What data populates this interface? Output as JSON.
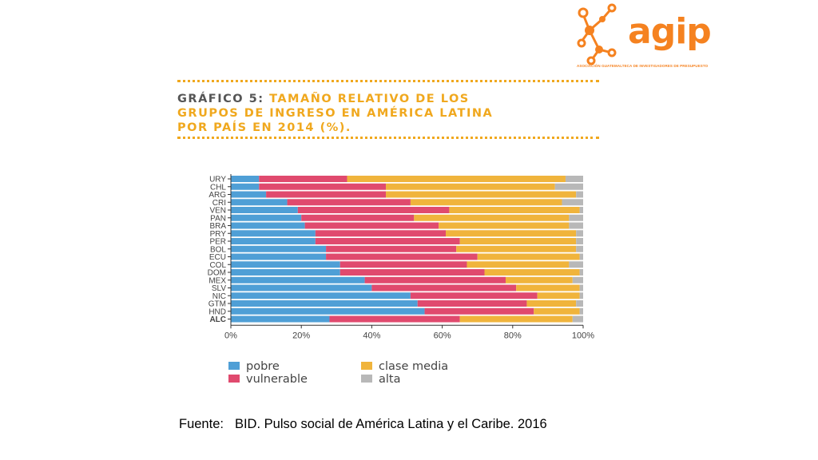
{
  "logo": {
    "name": "agip",
    "subtitle": "ASOCIACIÓN GUATEMALTECA DE INVESTIGADORES DE PRESUPUESTO",
    "icon": "molecule-network-icon",
    "color": "#f58220"
  },
  "title": {
    "lead": "GRÁFICO 5:",
    "rest_line1": "TAMAÑO RELATIVO DE LOS",
    "line2": "GRUPOS DE INGRESO EN AMÉRICA LATINA",
    "line3": "POR PAÍS EN 2014 (%)."
  },
  "source": {
    "label": "Fuente:",
    "text": "BID. Pulso social de América Latina y el Caribe. 2016"
  },
  "colors": {
    "pobre": "#4f9fd6",
    "vulnerable": "#e04a6e",
    "clase_media": "#f0b43c",
    "alta": "#b8b8b8",
    "title_accent": "#f0a81e",
    "title_lead": "#555555"
  },
  "chart_data": {
    "type": "bar",
    "orientation": "horizontal",
    "stacked": true,
    "categories": [
      "URY",
      "CHL",
      "ARG",
      "CRI",
      "VEN",
      "PAN",
      "BRA",
      "PRY",
      "PER",
      "BOL",
      "ECU",
      "COL",
      "DOM",
      "MEX",
      "SLV",
      "NIC",
      "GTM",
      "HND",
      "ALC"
    ],
    "series": [
      {
        "name": "pobre",
        "color": "#4f9fd6",
        "values": [
          8,
          8,
          10,
          16,
          19,
          20,
          21,
          24,
          24,
          27,
          27,
          31,
          31,
          38,
          40,
          51,
          53,
          55,
          28
        ]
      },
      {
        "name": "vulnerable",
        "color": "#e04a6e",
        "values": [
          25,
          36,
          34,
          35,
          43,
          32,
          38,
          37,
          41,
          37,
          43,
          36,
          41,
          40,
          41,
          36,
          31,
          31,
          37
        ]
      },
      {
        "name": "clase media",
        "color": "#f0b43c",
        "values": [
          62,
          48,
          54,
          43,
          37,
          44,
          37,
          37,
          33,
          34,
          29,
          29,
          27,
          19,
          18,
          12,
          14,
          13,
          32
        ]
      },
      {
        "name": "alta",
        "color": "#b8b8b8",
        "values": [
          5,
          8,
          2,
          6,
          1,
          4,
          4,
          2,
          2,
          2,
          1,
          4,
          1,
          3,
          1,
          1,
          2,
          1,
          3
        ]
      }
    ],
    "xlim": [
      0,
      100
    ],
    "xticks": [
      "0%",
      "20%",
      "40%",
      "60%",
      "80%",
      "100%"
    ],
    "bold_categories": [
      "ALC"
    ],
    "legend": {
      "placement": "bottom",
      "items": [
        "pobre",
        "vulnerable",
        "clase media",
        "alta"
      ]
    },
    "grid": false
  }
}
